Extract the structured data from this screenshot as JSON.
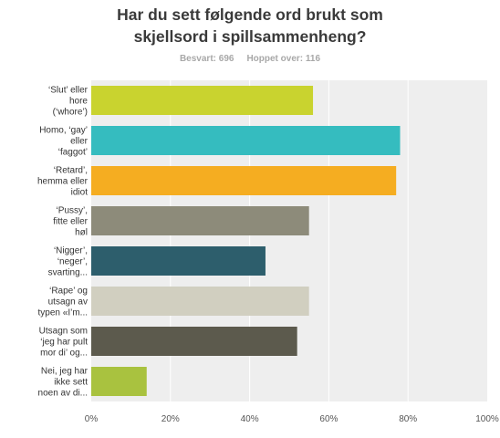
{
  "chart_data": {
    "type": "bar",
    "orientation": "horizontal",
    "title": "Har du sett følgende ord brukt som skjellsord i spillsammenheng?",
    "summary": {
      "answered": "Besvart: 696",
      "skipped": "Hoppet over: 116"
    },
    "categories": [
      "‘Slut’ eller hore (‘whore’)",
      "Homo, ‘gay’ eller ‘faggot’",
      "‘Retard’, hemma eller idiot",
      "‘Pussy’, fitte eller høl",
      "‘Nigger’, ‘neger’, svarting...",
      "‘Rape’ og utsagn av typen «I’m...",
      "Utsagn som ‘jeg har pult mor di’ og...",
      "Nei, jeg har ikke sett noen av di..."
    ],
    "values": [
      56,
      78,
      77,
      55,
      44,
      55,
      52,
      14
    ],
    "xlim": [
      0,
      100
    ],
    "x_tick_labels": [
      "0%",
      "20%",
      "40%",
      "60%",
      "80%",
      "100%"
    ],
    "grid": true,
    "colors": [
      "#c9d32f",
      "#35bcbf",
      "#f5ad21",
      "#8d8b7a",
      "#2d5e6c",
      "#d1cfc0",
      "#5c5a4d",
      "#a9c23f"
    ]
  }
}
